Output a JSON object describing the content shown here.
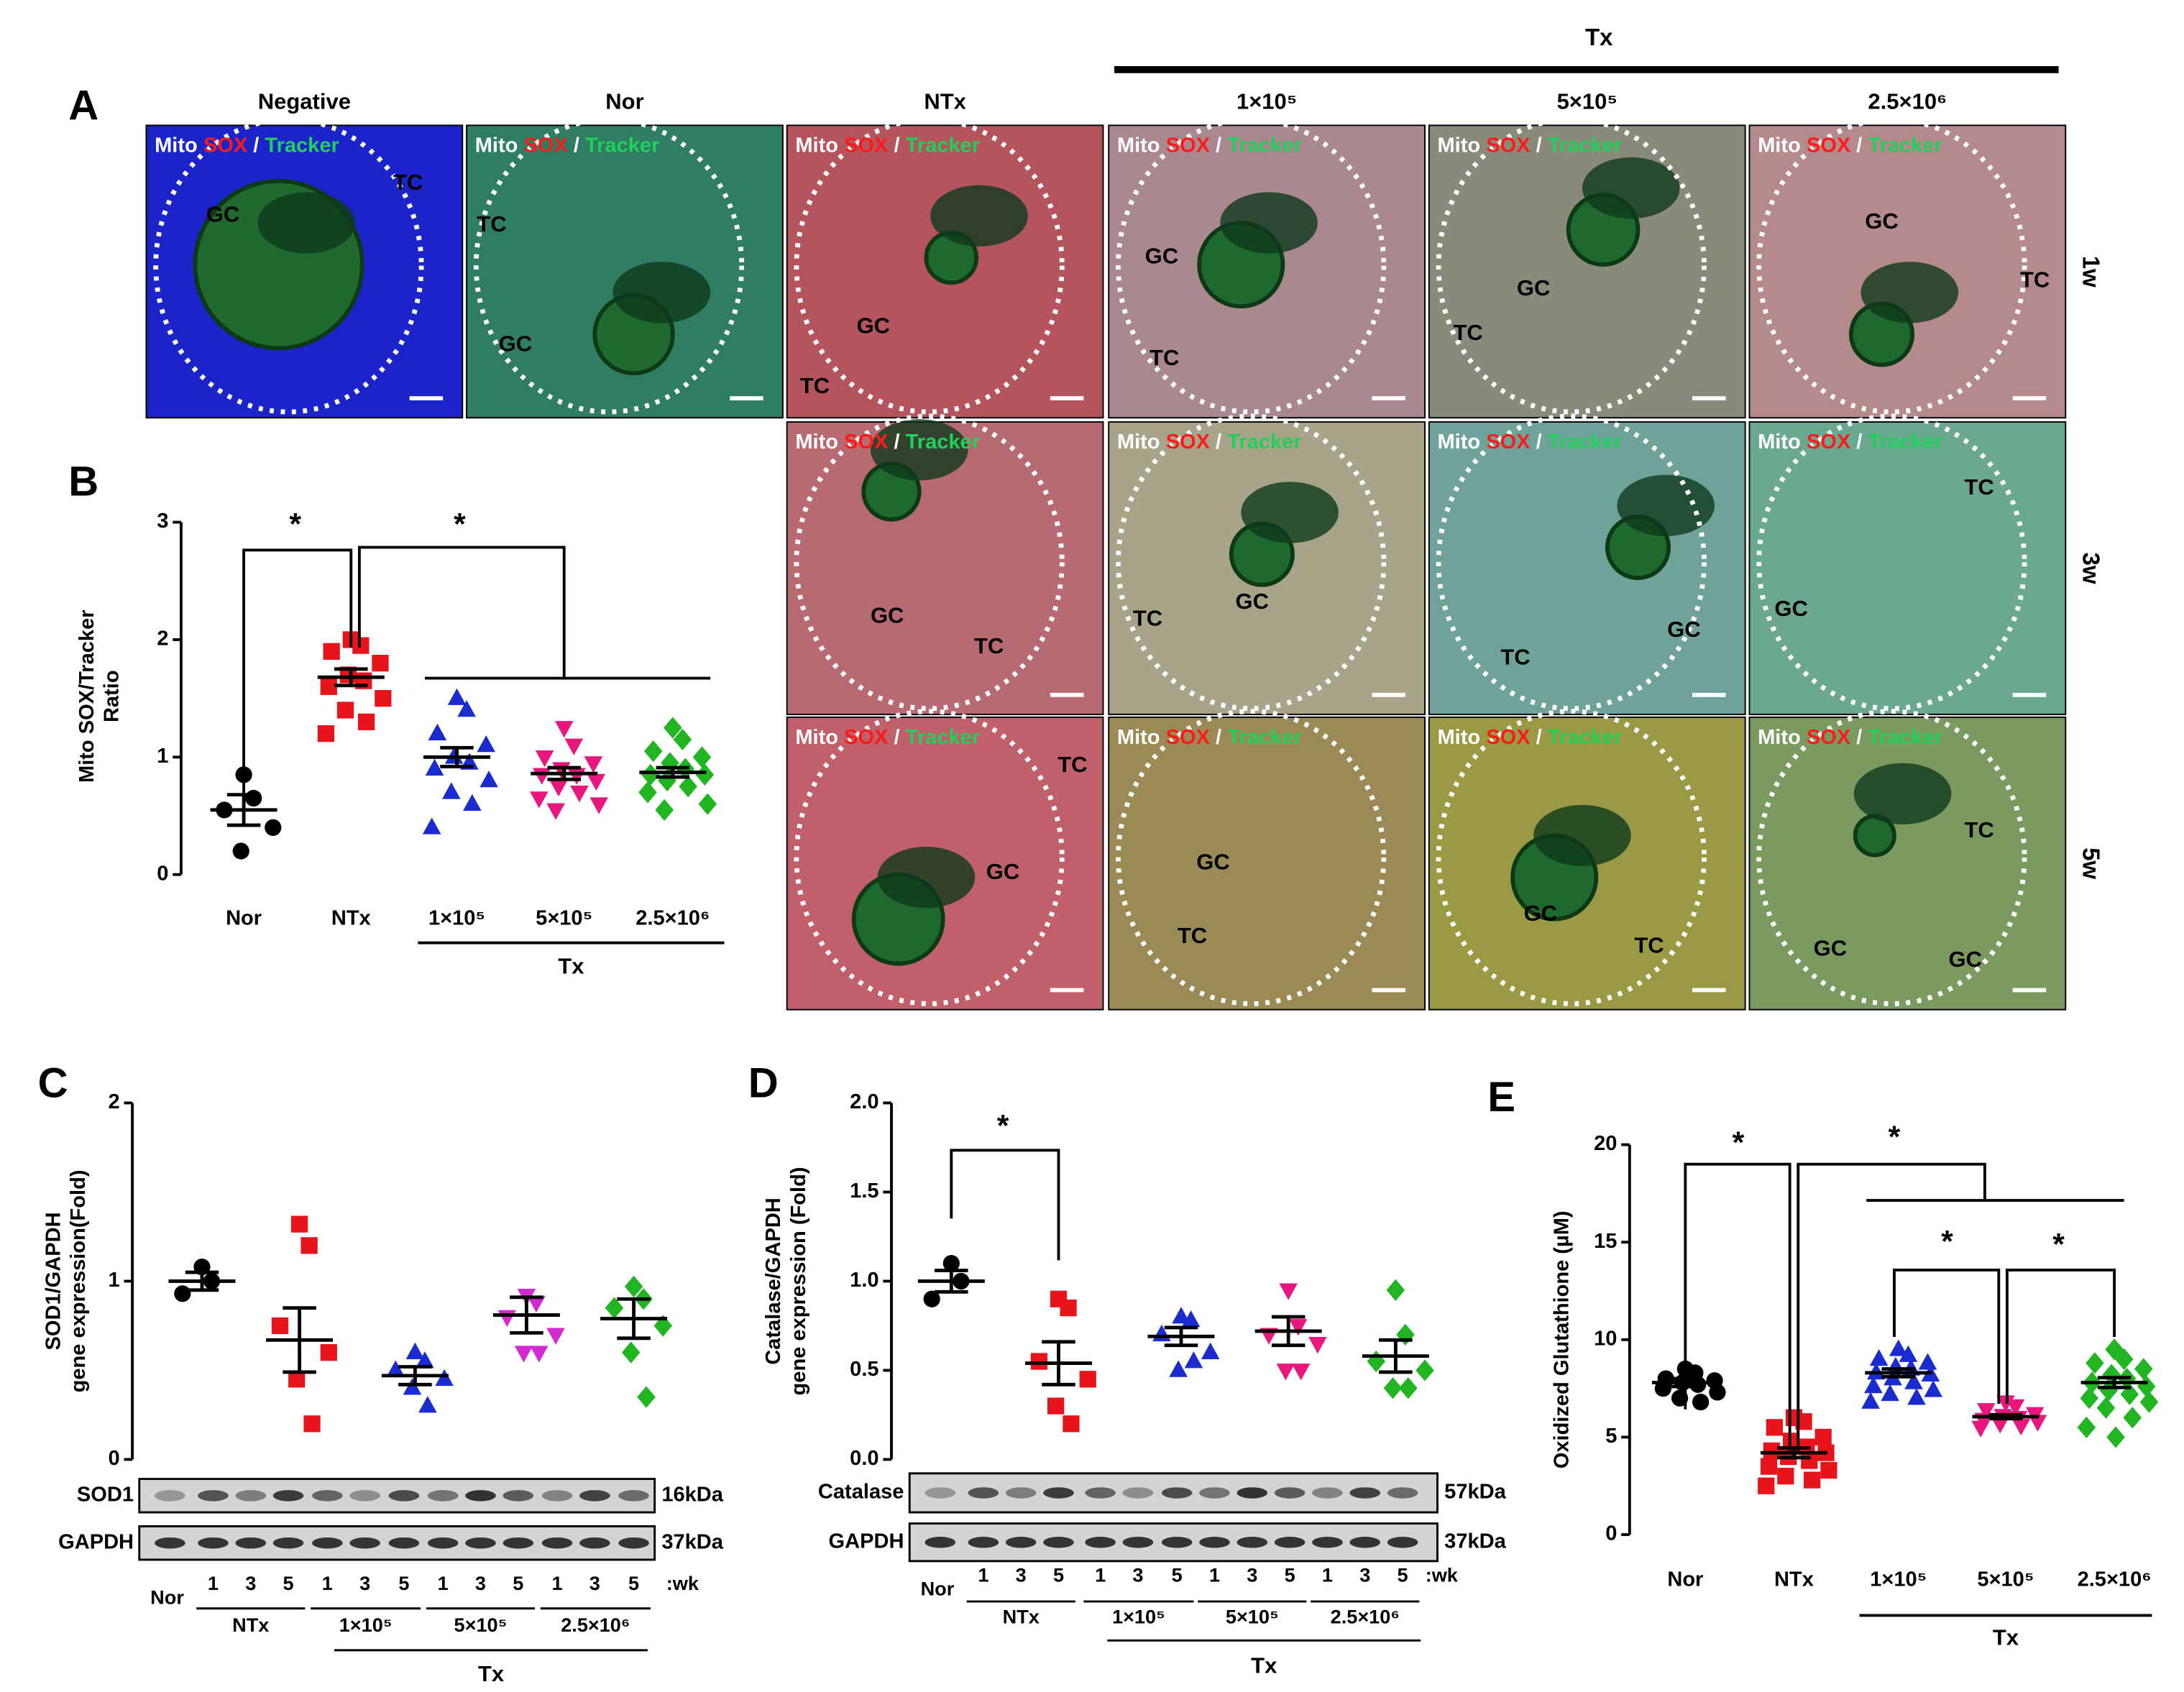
{
  "panel_a": {
    "label": "A",
    "tx_label": "Tx",
    "columns": [
      "Negative",
      "Nor",
      "NTx",
      "1×10⁵",
      "5×10⁵",
      "2.5×10⁶"
    ],
    "rows": [
      "1w",
      "3w",
      "5w"
    ],
    "stain": [
      "Mito ",
      "SOX",
      " / ",
      "Tracker"
    ],
    "panels": [
      {
        "labels": [
          "GC",
          "TC"
        ]
      },
      {
        "labels": [
          "TC",
          "GC"
        ]
      },
      {
        "labels": [
          "GC",
          "TC"
        ]
      },
      {
        "labels": [
          "GC",
          "TC"
        ]
      },
      {
        "labels": [
          "GC",
          "TC"
        ]
      },
      {
        "labels": [
          "GC",
          "TC"
        ]
      },
      {
        "labels": [
          "GC",
          "TC"
        ]
      },
      {
        "labels": [
          "TC",
          "GC"
        ]
      },
      {
        "labels": [
          "TC",
          "GC"
        ]
      },
      {
        "labels": [
          "TC",
          "GC"
        ]
      },
      {
        "labels": [
          "TC",
          "GC"
        ]
      },
      {
        "labels": [
          "GC",
          "TC"
        ]
      },
      {
        "labels": [
          "GC",
          "TC"
        ]
      },
      {
        "labels": [
          "TC",
          "GC",
          "GC"
        ]
      }
    ]
  },
  "chart_data": [
    {
      "panel": "B",
      "type": "dotplot",
      "ylabel": [
        "Mito SOX/Tracker",
        "Ratio"
      ],
      "ylim": [
        0,
        3
      ],
      "yticks": [
        0,
        1,
        2,
        3
      ],
      "categories": [
        "Nor",
        "NTx",
        "1×10⁵",
        "5×10⁵",
        "2.5×10⁶"
      ],
      "group_label": "Tx",
      "annotations": [
        "*",
        "*"
      ],
      "colors": [
        "#000000",
        "#e8141b",
        "#1a2bd0",
        "#e8177d",
        "#22b522"
      ],
      "markers": [
        "circle",
        "square",
        "triangle",
        "triangle-down",
        "diamond"
      ],
      "points": [
        [
          0.85,
          0.65,
          0.55,
          0.4,
          0.2
        ],
        [
          2.0,
          1.95,
          1.9,
          1.8,
          1.7,
          1.65,
          1.6,
          1.5,
          1.4,
          1.3,
          1.2
        ],
        [
          1.5,
          1.4,
          1.2,
          1.1,
          1.0,
          0.95,
          0.9,
          0.8,
          0.7,
          0.6,
          0.4
        ],
        [
          1.25,
          1.1,
          1.0,
          0.95,
          0.9,
          0.85,
          0.85,
          0.8,
          0.75,
          0.7,
          0.65,
          0.6,
          0.55
        ],
        [
          1.25,
          1.15,
          1.05,
          1.0,
          0.95,
          0.9,
          0.85,
          0.85,
          0.8,
          0.75,
          0.7,
          0.6,
          0.55
        ]
      ],
      "means": [
        0.55,
        1.68,
        1.0,
        0.86,
        0.87
      ],
      "errors": [
        0.13,
        0.07,
        0.08,
        0.05,
        0.04
      ]
    },
    {
      "panel": "C",
      "type": "dotplot",
      "ylabel": [
        "SOD1/GAPDH",
        "gene expression(Fold)"
      ],
      "ylim": [
        0,
        2
      ],
      "yticks": [
        0,
        1,
        2
      ],
      "colors": [
        "#000000",
        "#e8141b",
        "#1a2bd0",
        "#d22bd2",
        "#22b522"
      ],
      "markers": [
        "circle",
        "square",
        "triangle",
        "triangle-down",
        "diamond"
      ],
      "points": [
        [
          1.08,
          1.0,
          0.93
        ],
        [
          1.32,
          1.2,
          0.75,
          0.6,
          0.45,
          0.2
        ],
        [
          0.6,
          0.55,
          0.5,
          0.45,
          0.4,
          0.3
        ],
        [
          0.92,
          0.88,
          0.8,
          0.7,
          0.6,
          0.6
        ],
        [
          0.97,
          0.9,
          0.85,
          0.75,
          0.6,
          0.35
        ]
      ],
      "means": [
        1.0,
        0.67,
        0.47,
        0.81,
        0.79
      ],
      "errors": [
        0.05,
        0.18,
        0.05,
        0.1,
        0.11
      ],
      "blot": {
        "rows": [
          "SOD1",
          "GAPDH"
        ],
        "sizes": [
          "16kDa",
          "37kDa"
        ],
        "lanes": [
          "Nor",
          "1",
          "3",
          "5",
          "1",
          "3",
          "5",
          "1",
          "3",
          "5",
          "1",
          "3",
          "5"
        ],
        "unit": ":wk",
        "groups": [
          "NTx",
          "1×10⁵",
          "5×10⁵",
          "2.5×10⁶"
        ],
        "group_label": "Tx"
      }
    },
    {
      "panel": "D",
      "type": "dotplot",
      "ylabel": [
        "Catalase/GAPDH",
        "gene expression (Fold)"
      ],
      "ylim": [
        0,
        2
      ],
      "yticks": [
        {
          "value": 0,
          "label": "0.0"
        },
        0.5,
        {
          "value": 1,
          "label": "1.0"
        },
        1.5,
        {
          "value": 2,
          "label": "2.0"
        }
      ],
      "annotations": [
        "*"
      ],
      "colors": [
        "#000000",
        "#e8141b",
        "#1a2bd0",
        "#e8177d",
        "#22b522"
      ],
      "markers": [
        "circle",
        "square",
        "triangle",
        "triangle-down",
        "diamond"
      ],
      "points": [
        [
          1.1,
          1.0,
          0.9
        ],
        [
          0.9,
          0.85,
          0.55,
          0.45,
          0.3,
          0.2
        ],
        [
          0.8,
          0.78,
          0.7,
          0.6,
          0.5,
          0.55
        ],
        [
          0.95,
          0.75,
          0.7,
          0.65,
          0.5,
          0.5
        ],
        [
          0.95,
          0.7,
          0.55,
          0.5,
          0.4,
          0.4
        ]
      ],
      "means": [
        1.0,
        0.54,
        0.69,
        0.72,
        0.58
      ],
      "errors": [
        0.06,
        0.12,
        0.05,
        0.08,
        0.09
      ],
      "blot": {
        "rows": [
          "Catalase",
          "GAPDH"
        ],
        "sizes": [
          "57kDa",
          "37kDa"
        ],
        "lanes": [
          "Nor",
          "1",
          "3",
          "5",
          "1",
          "3",
          "5",
          "1",
          "3",
          "5",
          "1",
          "3",
          "5"
        ],
        "unit": ":wk",
        "groups": [
          "NTx",
          "1×10⁵",
          "5×10⁵",
          "2.5×10⁶"
        ],
        "group_label": "Tx"
      }
    },
    {
      "panel": "E",
      "type": "dotplot",
      "ylabel": [
        "Oxidized Glutathione (µM)"
      ],
      "ylim": [
        0,
        20
      ],
      "yticks": [
        0,
        5,
        10,
        15,
        20
      ],
      "categories": [
        "Nor",
        "NTx",
        "1×10⁵",
        "5×10⁵",
        "2.5×10⁶"
      ],
      "group_label": "Tx",
      "annotations": [
        "*",
        "*",
        "*",
        "*"
      ],
      "colors": [
        "#000000",
        "#e8141b",
        "#1a2bd0",
        "#e8177d",
        "#22b522"
      ],
      "markers": [
        "circle",
        "square",
        "triangle",
        "triangle-down",
        "diamond"
      ],
      "points": [
        [
          8.5,
          8.3,
          8.0,
          7.9,
          7.8,
          7.7,
          7.5,
          7.3,
          7.0,
          6.8
        ],
        [
          6.0,
          5.8,
          5.5,
          5.0,
          4.8,
          4.5,
          4.3,
          4.2,
          4.0,
          3.8,
          3.5,
          3.3,
          3.0,
          2.8,
          2.5
        ],
        [
          9.5,
          9.2,
          9.0,
          8.8,
          8.6,
          8.5,
          8.3,
          8.2,
          8.0,
          7.8,
          7.6,
          7.4,
          7.2,
          7.0,
          6.8
        ],
        [
          6.8,
          6.6,
          6.4,
          6.2,
          6.1,
          6.0,
          5.9,
          5.8,
          5.7,
          5.6,
          5.5
        ],
        [
          9.5,
          9.0,
          8.8,
          8.5,
          8.2,
          8.0,
          7.8,
          7.6,
          7.4,
          7.2,
          7.0,
          6.8,
          6.5,
          6.0,
          5.5,
          5.0
        ]
      ],
      "means": [
        7.8,
        4.2,
        8.3,
        6.05,
        7.8
      ],
      "errors": [
        0.2,
        0.25,
        0.2,
        0.1,
        0.25
      ]
    }
  ]
}
